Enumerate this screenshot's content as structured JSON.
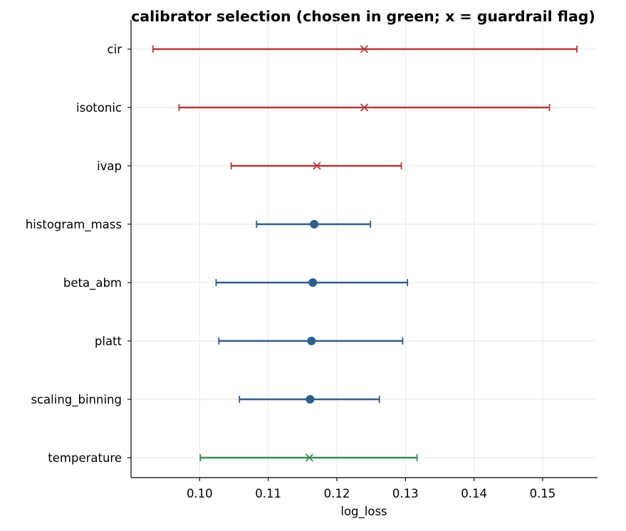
{
  "chart_data": {
    "type": "errorbar",
    "title": "calibrator selection (chosen in green; x = guardrail flag)",
    "xlabel": "log_loss",
    "ylabel": "",
    "xlim": [
      0.09,
      0.158
    ],
    "xticks": [
      0.1,
      0.11,
      0.12,
      0.13,
      0.14,
      0.15
    ],
    "xtick_labels": [
      "0.10",
      "0.11",
      "0.12",
      "0.13",
      "0.14",
      "0.15"
    ],
    "grid": true,
    "colors": {
      "chosen": "#3a8a52",
      "flagged": "#b03a3a",
      "normal": "#2d5f8d"
    },
    "categories": [
      "cir",
      "isotonic",
      "ivap",
      "histogram_mass",
      "beta_abm",
      "platt",
      "scaling_binning",
      "temperature"
    ],
    "points": [
      {
        "label": "cir",
        "value": 0.124,
        "low": 0.0932,
        "high": 0.155,
        "status": "flagged",
        "marker": "x"
      },
      {
        "label": "isotonic",
        "value": 0.124,
        "low": 0.097,
        "high": 0.151,
        "status": "flagged",
        "marker": "x"
      },
      {
        "label": "ivap",
        "value": 0.1171,
        "low": 0.1046,
        "high": 0.1294,
        "status": "flagged",
        "marker": "x"
      },
      {
        "label": "histogram_mass",
        "value": 0.1167,
        "low": 0.1083,
        "high": 0.1249,
        "status": "normal",
        "marker": "o"
      },
      {
        "label": "beta_abm",
        "value": 0.1165,
        "low": 0.1024,
        "high": 0.1303,
        "status": "normal",
        "marker": "o"
      },
      {
        "label": "platt",
        "value": 0.1163,
        "low": 0.1028,
        "high": 0.1296,
        "status": "normal",
        "marker": "o"
      },
      {
        "label": "scaling_binning",
        "value": 0.1161,
        "low": 0.1058,
        "high": 0.1262,
        "status": "normal",
        "marker": "o"
      },
      {
        "label": "temperature",
        "value": 0.116,
        "low": 0.1001,
        "high": 0.1317,
        "status": "chosen",
        "marker": "x"
      }
    ]
  }
}
